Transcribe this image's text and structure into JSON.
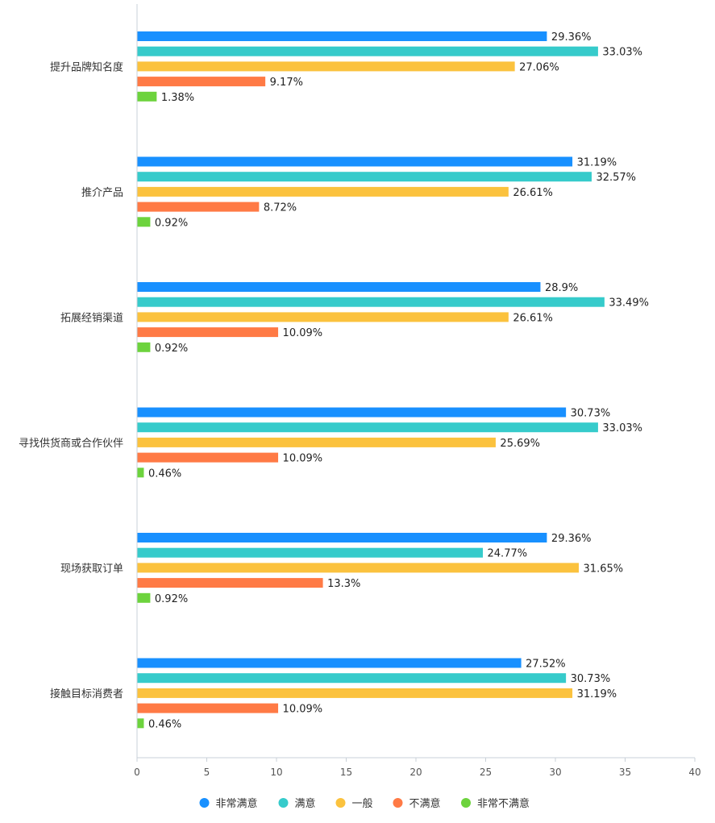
{
  "chart_data": {
    "type": "bar",
    "orientation": "horizontal",
    "categories": [
      "提升品牌知名度",
      "推介产品",
      "拓展经销渠道",
      "寻找供货商或合作伙伴",
      "现场获取订单",
      "接触目标消费者"
    ],
    "series": [
      {
        "name": "非常满意",
        "color": "#1890FF",
        "values": [
          29.36,
          31.19,
          28.9,
          30.73,
          29.36,
          27.52
        ],
        "labels": [
          "29.36%",
          "31.19%",
          "28.9%",
          "30.73%",
          "29.36%",
          "27.52%"
        ]
      },
      {
        "name": "满意",
        "color": "#36CBCB",
        "values": [
          33.03,
          32.57,
          33.49,
          33.03,
          24.77,
          30.73
        ],
        "labels": [
          "33.03%",
          "32.57%",
          "33.49%",
          "33.03%",
          "24.77%",
          "30.73%"
        ]
      },
      {
        "name": "一般",
        "color": "#FBC23E",
        "values": [
          27.06,
          26.61,
          26.61,
          25.69,
          31.65,
          31.19
        ],
        "labels": [
          "27.06%",
          "26.61%",
          "26.61%",
          "25.69%",
          "31.65%",
          "31.19%"
        ]
      },
      {
        "name": "不满意",
        "color": "#FF7A45",
        "values": [
          9.17,
          8.72,
          10.09,
          10.09,
          13.3,
          10.09
        ],
        "labels": [
          "9.17%",
          "8.72%",
          "10.09%",
          "10.09%",
          "13.3%",
          "10.09%"
        ]
      },
      {
        "name": "非常不满意",
        "color": "#6DD33D",
        "values": [
          1.38,
          0.92,
          0.92,
          0.46,
          0.92,
          0.46
        ],
        "labels": [
          "1.38%",
          "0.92%",
          "0.92%",
          "0.46%",
          "0.92%",
          "0.46%"
        ]
      }
    ],
    "xlim": [
      0,
      40
    ],
    "xticks": [
      "0",
      "5",
      "10",
      "15",
      "20",
      "25",
      "30",
      "35",
      "40"
    ],
    "title": "",
    "xlabel": "",
    "ylabel": "",
    "grid": false,
    "legend_position": "bottom"
  }
}
